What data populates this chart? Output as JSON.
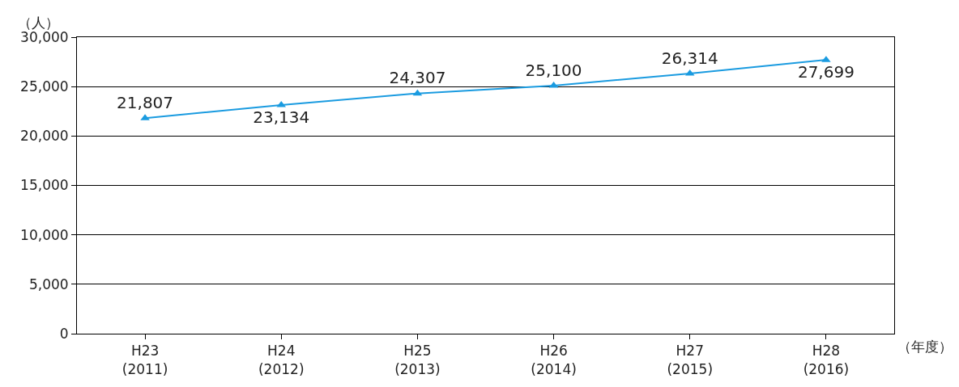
{
  "chart_data": {
    "type": "line",
    "categories": [
      "H23\n(2011)",
      "H24\n(2012)",
      "H25\n(2013)",
      "H26\n(2014)",
      "H27\n(2015)",
      "H28\n(2016)"
    ],
    "series": [
      {
        "color": "#1a9be0",
        "values": [
          21807,
          23134,
          24307,
          25100,
          26314,
          27699
        ],
        "value_labels": [
          "21,807",
          "23,134",
          "24,307",
          "25,100",
          "26,314",
          "27,699"
        ]
      }
    ],
    "ylabel": "（人）",
    "xlabel": "（年度）",
    "ylim": [
      0,
      30000
    ],
    "yticks": [
      {
        "value": 0,
        "label": "0"
      },
      {
        "value": 5000,
        "label": "5,000"
      },
      {
        "value": 10000,
        "label": "10,000"
      },
      {
        "value": 15000,
        "label": "15,000"
      },
      {
        "value": 20000,
        "label": "20,000"
      },
      {
        "value": 25000,
        "label": "25,000"
      },
      {
        "value": 30000,
        "label": "30,000"
      }
    ],
    "grid": "y",
    "marker": "triangle",
    "line_style": "solid"
  }
}
